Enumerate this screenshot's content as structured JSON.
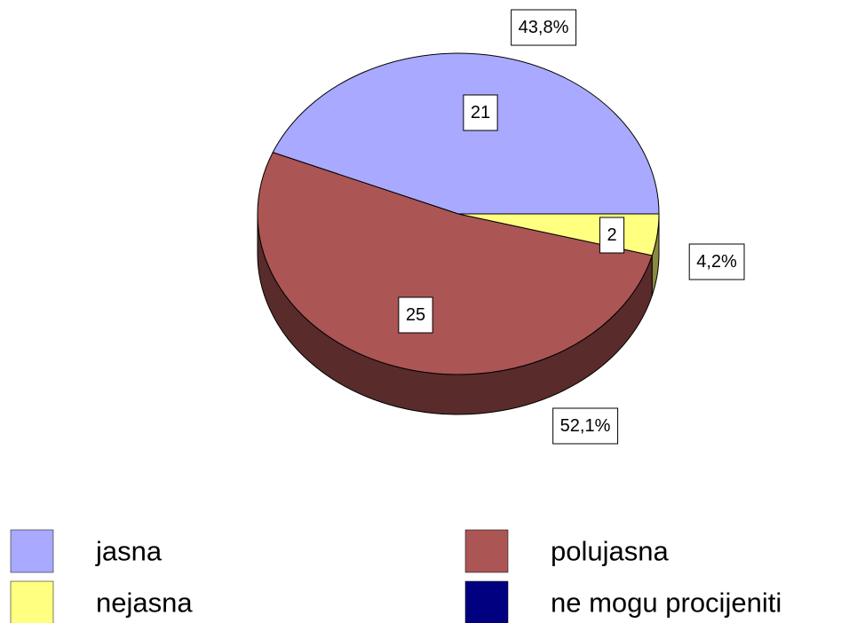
{
  "chart_data": {
    "type": "pie3d",
    "categories": [
      "jasna",
      "polujasna",
      "nejasna",
      "ne mogu procijeniti"
    ],
    "values": [
      21,
      25,
      2,
      0
    ],
    "percent_labels": [
      "43,8%",
      "52,1%",
      "4,2%",
      null
    ],
    "colors": [
      "#a9a9ff",
      "#ab5555",
      "#ffff80",
      "#000080"
    ],
    "side_colors": [
      "#5555a0",
      "#5a2b2b",
      "#8a8a40",
      "#000040"
    ]
  }
}
